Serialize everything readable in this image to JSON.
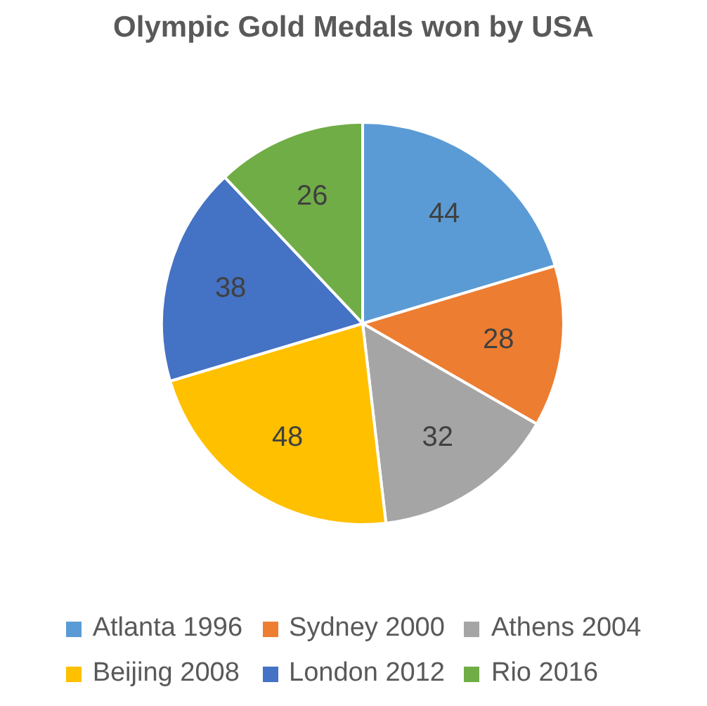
{
  "chart_data": {
    "type": "pie",
    "title": "Olympic Gold Medals won by USA",
    "categories": [
      "Atlanta 1996",
      "Sydney 2000",
      "Athens 2004",
      "Beijing 2008",
      "London 2012",
      "Rio 2016"
    ],
    "values": [
      44,
      28,
      32,
      48,
      38,
      26
    ],
    "colors": [
      "#5b9bd5",
      "#ed7d31",
      "#a5a5a5",
      "#ffc000",
      "#4472c4",
      "#70ad47"
    ],
    "data_labels": true,
    "legend": "bottom"
  }
}
